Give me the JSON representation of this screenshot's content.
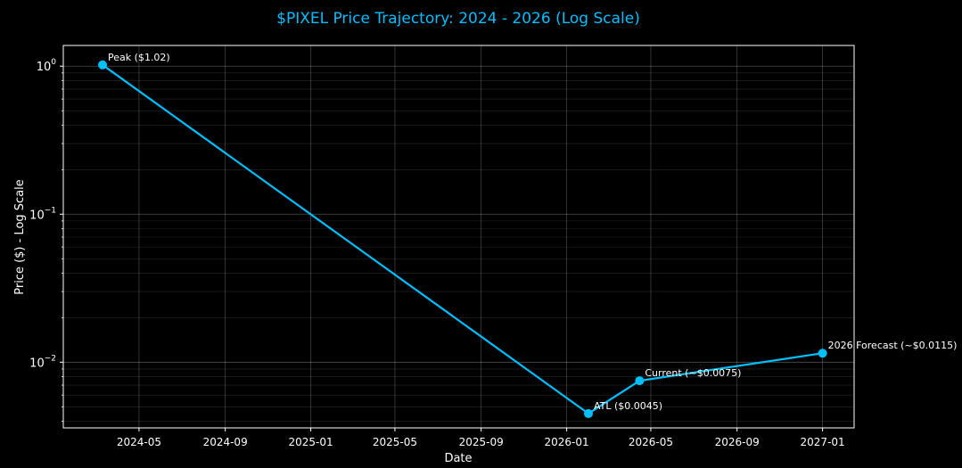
{
  "chart_data": {
    "type": "line",
    "title": "$PIXEL Price Trajectory: 2024 - 2026 (Log Scale)",
    "xlabel": "Date",
    "ylabel": "Price ($) - Log Scale",
    "yscale": "log",
    "ylim": [
      0.0036,
      1.38
    ],
    "xlim": [
      "2024-01-14",
      "2027-02-15"
    ],
    "grid": true,
    "x_ticks": [
      "2024-05",
      "2024-09",
      "2025-01",
      "2025-05",
      "2025-09",
      "2026-01",
      "2026-05",
      "2026-09",
      "2027-01"
    ],
    "y_ticks": [
      {
        "value": 1,
        "base": "10",
        "exp": "0"
      },
      {
        "value": 0.1,
        "base": "10",
        "exp": "−1"
      },
      {
        "value": 0.01,
        "base": "10",
        "exp": "−2"
      }
    ],
    "series": [
      {
        "points": [
          {
            "x": "2024-03-10",
            "y": 1.02,
            "label": "Peak ($1.02)"
          },
          {
            "x": "2026-02-01",
            "y": 0.0045,
            "label": "ATL ($0.0045)"
          },
          {
            "x": "2026-04-15",
            "y": 0.0075,
            "label": "Current (~$0.0075)"
          },
          {
            "x": "2027-01-01",
            "y": 0.0115,
            "label": "2026 Forecast (~$0.0115)"
          }
        ]
      }
    ],
    "colors": {
      "background": "#000000",
      "title": "#00bfff",
      "line": "#00bfff",
      "text": "#ffffff",
      "grid": "#ffffff",
      "axes": "#ffffff"
    }
  }
}
